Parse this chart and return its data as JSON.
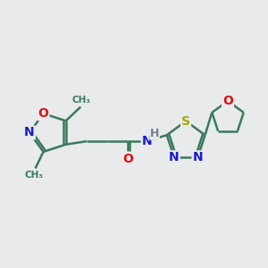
{
  "bg_color": "#e8eaec",
  "bond_color": "#3a7a5a",
  "atom_colors": {
    "N": "#1a1acc",
    "O": "#dd1111",
    "S": "#aaaa00",
    "H": "#708090",
    "C": "#3a7a5a"
  },
  "figsize": [
    3.0,
    3.0
  ],
  "dpi": 100,
  "xlim": [
    0,
    10
  ],
  "ylim": [
    1.5,
    8.5
  ]
}
